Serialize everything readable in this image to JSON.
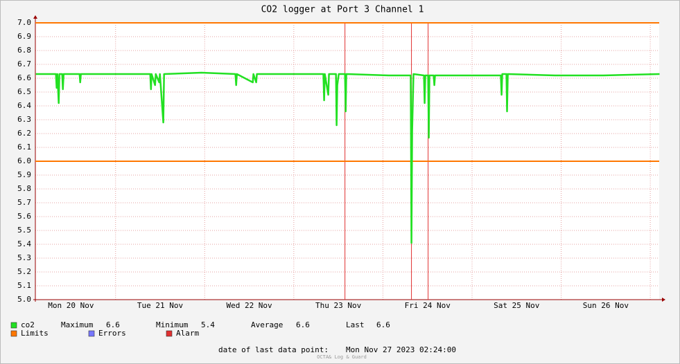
{
  "chart_data": {
    "type": "line",
    "title": "CO2 logger at Port 3 Channel 1",
    "xlim": [
      0.1,
      7.1
    ],
    "xticks": [
      {
        "value": 0.5,
        "label": "Mon 20 Nov"
      },
      {
        "value": 1.5,
        "label": "Tue 21 Nov"
      },
      {
        "value": 2.5,
        "label": "Wed 22 Nov"
      },
      {
        "value": 3.5,
        "label": "Thu 23 Nov"
      },
      {
        "value": 4.5,
        "label": "Fri 24 Nov"
      },
      {
        "value": 5.5,
        "label": "Sat 25 Nov"
      },
      {
        "value": 6.5,
        "label": "Sun 26 Nov"
      }
    ],
    "xgrid": [
      1,
      2,
      3,
      4,
      5,
      6,
      7
    ],
    "ylim": [
      5.0,
      7.0
    ],
    "yticks": [
      {
        "value": 5,
        "label": "5.0"
      },
      5.1,
      5.2,
      5.3,
      5.4,
      5.5,
      5.6,
      5.7,
      5.8,
      5.9,
      {
        "value": 6,
        "label": "6.0"
      },
      6.1,
      6.2,
      6.3,
      6.4,
      6.5,
      6.6,
      6.7,
      6.8,
      6.9,
      {
        "value": 7,
        "label": "7.0"
      }
    ],
    "grid": true,
    "series": [
      {
        "name": "co2",
        "color": "#22e022",
        "x": [
          0.106,
          0.331,
          0.339,
          0.347,
          0.362,
          0.37,
          0.401,
          0.409,
          0.417,
          0.596,
          0.603,
          0.611,
          0.953,
          1.264,
          1.389,
          1.397,
          1.404,
          1.443,
          1.451,
          1.49,
          1.498,
          1.536,
          1.544,
          1.964,
          2.345,
          2.353,
          2.361,
          2.54,
          2.547,
          2.578,
          2.586,
          2.975,
          3.332,
          3.34,
          3.348,
          3.387,
          3.395,
          3.473,
          3.48,
          3.488,
          3.504,
          3.574,
          3.582,
          3.589,
          4.064,
          4.312,
          4.32,
          4.328,
          4.343,
          4.46,
          4.468,
          4.476,
          4.507,
          4.515,
          4.522,
          4.569,
          4.577,
          4.585,
          5.152,
          5.323,
          5.331,
          5.339,
          5.386,
          5.393,
          5.401,
          5.93,
          6.474,
          7.104
        ],
        "values": [
          6.63,
          6.63,
          6.53,
          6.63,
          6.42,
          6.63,
          6.63,
          6.52,
          6.63,
          6.63,
          6.57,
          6.63,
          6.63,
          6.63,
          6.63,
          6.52,
          6.63,
          6.55,
          6.63,
          6.57,
          6.63,
          6.28,
          6.63,
          6.64,
          6.63,
          6.55,
          6.63,
          6.57,
          6.63,
          6.57,
          6.63,
          6.63,
          6.63,
          6.44,
          6.63,
          6.48,
          6.63,
          6.63,
          6.26,
          6.55,
          6.63,
          6.63,
          6.36,
          6.63,
          6.62,
          6.62,
          5.41,
          6.22,
          6.63,
          6.62,
          6.42,
          6.62,
          6.62,
          6.17,
          6.62,
          6.62,
          6.55,
          6.62,
          6.62,
          6.62,
          6.48,
          6.63,
          6.63,
          6.36,
          6.63,
          6.62,
          6.62,
          6.63
        ]
      }
    ],
    "stats": [
      {
        "label": "Maximum",
        "value": 6.6
      },
      {
        "label": "Minimum",
        "value": 5.4
      },
      {
        "label": "Average",
        "value": 6.6
      },
      {
        "label": "Last",
        "value": 6.6
      }
    ],
    "limits": {
      "name": "Limits",
      "color": "#ff7700",
      "values": [
        6.0,
        7.0
      ]
    },
    "errors": {
      "name": "Errors",
      "color": "#7777ff"
    },
    "alarm": {
      "name": "Alarm",
      "color": "#e03030",
      "x": [
        3.574,
        4.32,
        4.507
      ]
    },
    "footer_label": "date of last data point:",
    "footer_date": "Mon Nov 27 2023 02:24:00",
    "watermark": "OCTA& Log & Guard"
  }
}
